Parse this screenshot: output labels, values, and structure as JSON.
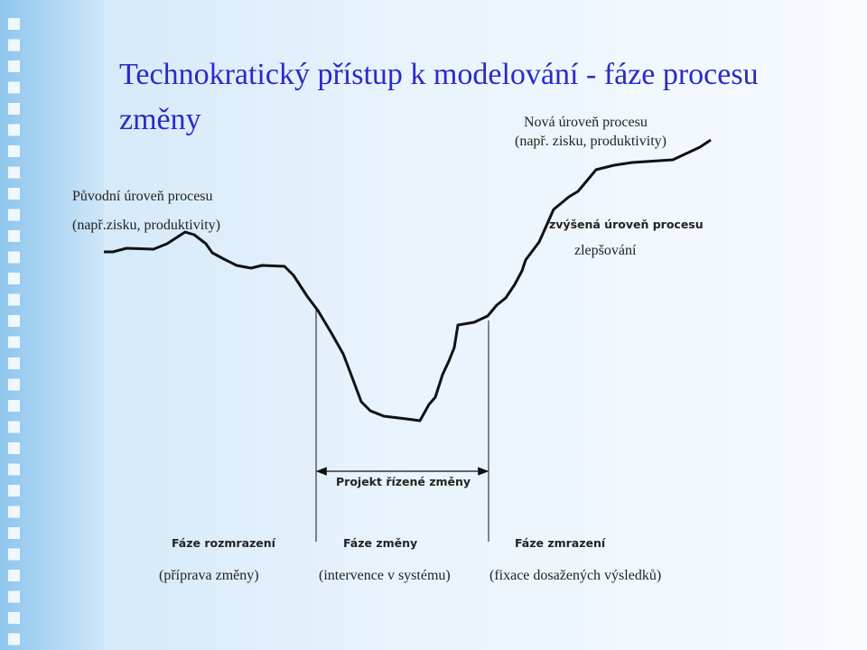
{
  "title": "Technokratický přístup k modelování - fáze procesu změny",
  "new_level": {
    "label": "Nová úroveň procesu",
    "detail": "(např. zisku, produktivity)"
  },
  "original_level": {
    "label": "Původní úroveň procesu",
    "detail": "(např.zisku, produktivity)"
  },
  "improved_level": "zvýšená úroveň procesu",
  "improvement": "zlepšování",
  "project": "Projekt řízené změny",
  "phases": [
    {
      "name": "Fáze rozmrazení",
      "detail": "(příprava změny)"
    },
    {
      "name": "Fáze změny",
      "detail": "(intervence v systému)"
    },
    {
      "name": "Fáze zmrazení",
      "detail": "(fixace dosažených výsledků)"
    }
  ]
}
